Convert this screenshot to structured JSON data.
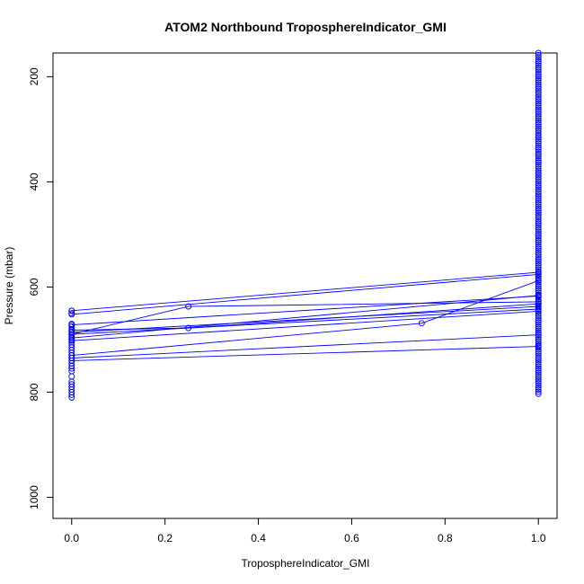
{
  "chart_data": {
    "type": "line",
    "title": "ATOM2 Northbound TroposphereIndicator_GMI",
    "xlabel": "TroposphereIndicator_GMI",
    "ylabel": "Pressure (mbar)",
    "xlim": [
      -0.04,
      1.04
    ],
    "ylim": [
      1040,
      155
    ],
    "y_reversed": true,
    "x_ticks": [
      0.0,
      0.2,
      0.4,
      0.6,
      0.8,
      1.0
    ],
    "x_tick_labels": [
      "0.0",
      "0.2",
      "0.4",
      "0.6",
      "0.8",
      "1.0"
    ],
    "y_ticks": [
      200,
      400,
      600,
      800,
      1000
    ],
    "y_tick_labels": [
      "200",
      "400",
      "600",
      "800",
      "1000"
    ],
    "grid": false,
    "legend": "none",
    "color": "#0000ff",
    "marker": "open-circle",
    "series": [
      {
        "x": [
          0,
          1
        ],
        "y": [
          645,
          572
        ]
      },
      {
        "x": [
          0,
          1
        ],
        "y": [
          652,
          576
        ]
      },
      {
        "x": [
          0,
          0.25,
          1
        ],
        "y": [
          690,
          637,
          628
        ]
      },
      {
        "x": [
          0,
          1
        ],
        "y": [
          672,
          617
        ]
      },
      {
        "x": [
          0,
          0.25,
          1
        ],
        "y": [
          682,
          678,
          632
        ]
      },
      {
        "x": [
          0,
          1
        ],
        "y": [
          686,
          637
        ]
      },
      {
        "x": [
          0,
          1
        ],
        "y": [
          690,
          642
        ]
      },
      {
        "x": [
          0,
          1
        ],
        "y": [
          697,
          616
        ]
      },
      {
        "x": [
          0,
          1
        ],
        "y": [
          702,
          646
        ]
      },
      {
        "x": [
          0,
          0.75,
          1
        ],
        "y": [
          730,
          669,
          588
        ]
      },
      {
        "x": [
          0,
          1
        ],
        "y": [
          735,
          691
        ]
      },
      {
        "x": [
          0,
          1
        ],
        "y": [
          740,
          713
        ]
      }
    ],
    "points_x0": [
      645,
      650,
      670,
      675,
      680,
      685,
      690,
      695,
      700,
      705,
      710,
      715,
      720,
      725,
      730,
      735,
      740,
      745,
      750,
      755,
      760,
      770,
      780,
      785,
      790,
      795,
      800,
      805,
      810
    ],
    "points_x1_range": [
      155,
      805
    ],
    "points_x1_step": 4
  }
}
